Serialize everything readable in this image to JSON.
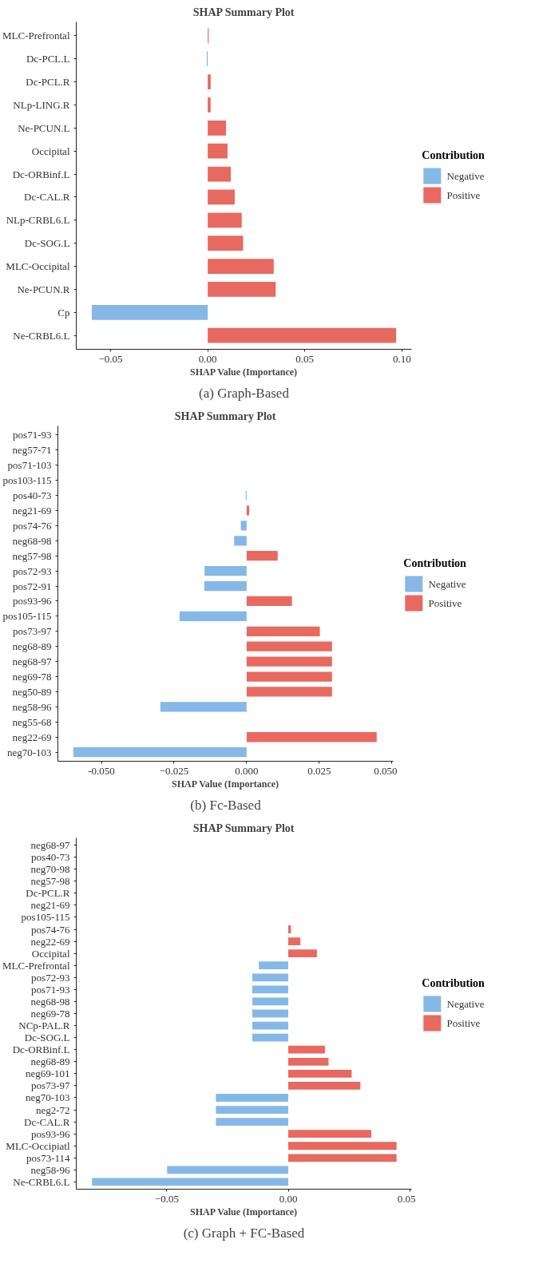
{
  "chart_data": [
    {
      "type": "bar",
      "orientation": "horizontal",
      "title": "SHAP Summary Plot",
      "xlabel": "SHAP Value (Importance)",
      "legend_title": "Contribution",
      "legend": "right",
      "grid": false,
      "annotations": [
        "(a) Graph-Based"
      ],
      "categories": [
        "MLC-Prefrontal",
        "Dc-PCL.L",
        "Dc-PCL.R",
        "NLp-LING.R",
        "Ne-PCUN.L",
        "Occipital",
        "Dc-ORBinf.L",
        "Dc-CAL.R",
        "NLp-CRBL6.L",
        "Dc-SOG.L",
        "MLC-Occipital",
        "Ne-PCUN.R",
        "Cp",
        "Ne-CRBL6.L"
      ],
      "xlim": [
        -0.0677,
        0.105
      ],
      "xticks": [
        -0.05,
        {
          "value": 0,
          "label": "0.00"
        },
        0.05,
        {
          "value": 0.1,
          "label": "0.10"
        }
      ],
      "series": [
        {
          "name": "Negative",
          "color": "#85b8e6",
          "values": [
            null,
            -0.0005,
            null,
            null,
            null,
            null,
            null,
            null,
            null,
            null,
            null,
            null,
            -0.0597,
            null
          ]
        },
        {
          "name": "Positive",
          "color": "#e8695f",
          "values": [
            0.0005,
            null,
            0.0015,
            0.0015,
            0.0094,
            0.0102,
            0.0119,
            0.0139,
            0.0175,
            0.0182,
            0.034,
            0.035,
            null,
            0.097
          ]
        }
      ]
    },
    {
      "type": "bar",
      "orientation": "horizontal",
      "title": "SHAP Summary Plot",
      "xlabel": "SHAP Value (Importance)",
      "legend_title": "Contribution",
      "legend": "right",
      "grid": false,
      "annotations": [
        "(b) Fc-Based"
      ],
      "categories": [
        "pos71-93",
        "neg57-71",
        "pos71-103",
        "pos103-115",
        "pos40-73",
        "neg21-69",
        "pos74-76",
        "neg68-98",
        "neg57-98",
        "pos72-93",
        "pos72-91",
        "pos93-96",
        "pos105-115",
        "pos73-97",
        "neg68-89",
        "neg68-97",
        "neg69-78",
        "neg50-89",
        "neg58-96",
        "neg55-68",
        "neg22-69",
        "neg70-103"
      ],
      "xlim": [
        -0.065,
        0.0505
      ],
      "xticks": [
        {
          "value": -0.05,
          "label": "-0.050"
        },
        -0.025,
        {
          "value": 0,
          "label": "0.000"
        },
        0.025,
        {
          "value": 0.05,
          "label": "0.050"
        }
      ],
      "series": [
        {
          "name": "Negative",
          "color": "#85b8e6",
          "values": [
            null,
            null,
            null,
            null,
            -0.0003,
            null,
            -0.002,
            -0.0043,
            null,
            -0.0145,
            -0.0146,
            null,
            -0.0231,
            null,
            null,
            null,
            null,
            null,
            -0.0297,
            null,
            null,
            -0.0597
          ]
        },
        {
          "name": "Positive",
          "color": "#e8695f",
          "values": [
            0,
            0,
            0,
            0,
            null,
            0.0009,
            null,
            null,
            0.0107,
            null,
            null,
            0.0156,
            null,
            0.0252,
            0.0294,
            0.0294,
            0.0294,
            0.0294,
            null,
            0,
            0.0448,
            null
          ]
        }
      ]
    },
    {
      "type": "bar",
      "orientation": "horizontal",
      "title": "SHAP Summary Plot",
      "xlabel": "SHAP Value (Importance)",
      "legend_title": "Contribution",
      "legend": "right",
      "grid": false,
      "annotations": [
        "(c) Graph + FC-Based"
      ],
      "categories": [
        "neg68-97",
        "pos40-73",
        "neg70-98",
        "neg57-98",
        "Dc-PCL.R",
        "neg21-69",
        "pos105-115",
        "pos74-76",
        "neg22-69",
        "Occipital",
        "MLC-Prefrontal",
        "pos72-93",
        "pos71-93",
        "neg68-98",
        "neg69-78",
        "NCp-PAL.R",
        "Dc-SOG.L",
        "Dc-ORBinf.L",
        "neg68-89",
        "neg69-101",
        "pos73-97",
        "neg70-103",
        "neg2-72",
        "Dc-CAL.R",
        "pos93-96",
        "MLC-Occipiatl",
        "pos73-114",
        "neg58-96",
        "Ne-CRBL6.L"
      ],
      "xlim": [
        -0.0873,
        0.0508
      ],
      "xticks": [
        -0.05,
        {
          "value": 0,
          "label": "0.00"
        },
        0.05
      ],
      "series": [
        {
          "name": "Negative",
          "color": "#85b8e6",
          "values": [
            null,
            null,
            null,
            null,
            null,
            null,
            null,
            null,
            null,
            null,
            -0.0121,
            -0.0148,
            -0.0148,
            -0.0148,
            -0.0148,
            -0.0148,
            -0.0148,
            null,
            null,
            null,
            null,
            -0.0298,
            -0.0298,
            -0.0298,
            null,
            null,
            null,
            -0.0499,
            -0.0808
          ]
        },
        {
          "name": "Positive",
          "color": "#e8695f",
          "values": [
            0,
            0,
            0,
            0,
            0,
            0,
            0,
            0.0011,
            0.005,
            0.0118,
            null,
            null,
            null,
            null,
            null,
            null,
            null,
            0.0151,
            0.0166,
            0.0261,
            0.0297,
            null,
            null,
            null,
            0.0342,
            0.0446,
            0.0446,
            null,
            null
          ]
        }
      ]
    }
  ]
}
